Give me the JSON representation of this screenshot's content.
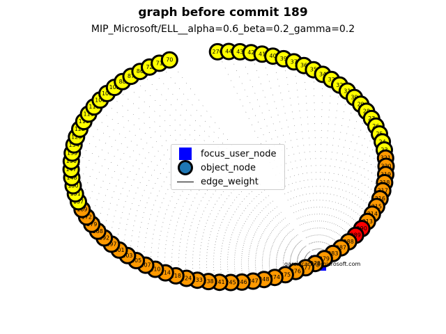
{
  "chart_data": {
    "type": "network",
    "title": "graph before commit 189",
    "subtitle": "MIP_Microsoft/ELL__alpha=0.6_beta=0.2_gamma=0.2",
    "legend": {
      "placement": "center",
      "entries": [
        {
          "label": "focus_user_node",
          "marker": "square",
          "color": "#0000ff"
        },
        {
          "label": "object_node",
          "marker": "circle",
          "color": "#1f77b4"
        },
        {
          "label": "edge_weight",
          "marker": "line",
          "color": "#000000"
        }
      ]
    },
    "focus_node": {
      "label": "garciacarlo@microsoft.com",
      "color": "#0000ff"
    },
    "node_ring": [
      {
        "label": "270",
        "color": "#ffff00"
      },
      {
        "label": "44",
        "color": "#ffff00"
      },
      {
        "label": "43",
        "color": "#ffff00"
      },
      {
        "label": "42",
        "color": "#ffff00"
      },
      {
        "label": "41",
        "color": "#ffff00"
      },
      {
        "label": "40",
        "color": "#ffff00"
      },
      {
        "label": "39",
        "color": "#ffff00"
      },
      {
        "label": "37",
        "color": "#ffff00"
      },
      {
        "label": "36",
        "color": "#ffff00"
      },
      {
        "label": "35",
        "color": "#ffff00"
      },
      {
        "label": "34",
        "color": "#ffff00"
      },
      {
        "label": "33",
        "color": "#ffff00"
      },
      {
        "label": "32",
        "color": "#ffff00"
      },
      {
        "label": "31",
        "color": "#ffff00"
      },
      {
        "label": "30",
        "color": "#ffff00"
      },
      {
        "label": "29",
        "color": "#ffff00"
      },
      {
        "label": "28",
        "color": "#ffff00"
      },
      {
        "label": "27",
        "color": "#ffff00"
      },
      {
        "label": "26",
        "color": "#ffff00"
      },
      {
        "label": "25",
        "color": "#ffff00"
      },
      {
        "label": "24",
        "color": "#ffff00"
      },
      {
        "label": "23",
        "color": "#ffff00"
      },
      {
        "label": "321",
        "color": "#ff9900"
      },
      {
        "label": "320",
        "color": "#ff9900"
      },
      {
        "label": "319",
        "color": "#ff9900"
      },
      {
        "label": "318",
        "color": "#ff9900"
      },
      {
        "label": "317",
        "color": "#ff9900"
      },
      {
        "label": "316",
        "color": "#ff9900"
      },
      {
        "label": "315",
        "color": "#ff9900"
      },
      {
        "label": "314",
        "color": "#ff9900"
      },
      {
        "label": "313",
        "color": "#ff9900"
      },
      {
        "label": "290",
        "color": "#ff0000"
      },
      {
        "label": "289",
        "color": "#ff0000"
      },
      {
        "label": "288",
        "color": "#ff9900"
      },
      {
        "label": "287",
        "color": "#ff9900"
      },
      {
        "label": "283",
        "color": "#ff9900"
      },
      {
        "label": "279",
        "color": "#ff9900"
      },
      {
        "label": "278",
        "color": "#ff9900"
      },
      {
        "label": "277",
        "color": "#ff9900"
      },
      {
        "label": "276",
        "color": "#ff9900"
      },
      {
        "label": "275",
        "color": "#ff9900"
      },
      {
        "label": "274",
        "color": "#ff9900"
      },
      {
        "label": "248",
        "color": "#ff9900"
      },
      {
        "label": "247",
        "color": "#ff9900"
      },
      {
        "label": "246",
        "color": "#ff9900"
      },
      {
        "label": "245",
        "color": "#ff9900"
      },
      {
        "label": "241",
        "color": "#ff9900"
      },
      {
        "label": "238",
        "color": "#ff9900"
      },
      {
        "label": "233",
        "color": "#ff9900"
      },
      {
        "label": "224",
        "color": "#ff9900"
      },
      {
        "label": "218",
        "color": "#ff9900"
      },
      {
        "label": "214",
        "color": "#ff9900"
      },
      {
        "label": "210",
        "color": "#ff9900"
      },
      {
        "label": "207",
        "color": "#ff9900"
      },
      {
        "label": "205",
        "color": "#ff9900"
      },
      {
        "label": "203",
        "color": "#ff9900"
      },
      {
        "label": "201",
        "color": "#ff9900"
      },
      {
        "label": "197",
        "color": "#ff9900"
      },
      {
        "label": "192",
        "color": "#ff9900"
      },
      {
        "label": "188",
        "color": "#ff9900"
      },
      {
        "label": "179",
        "color": "#ff9900"
      },
      {
        "label": "172",
        "color": "#ff9900"
      },
      {
        "label": "169",
        "color": "#ff9900"
      },
      {
        "label": "157",
        "color": "#ffff00"
      },
      {
        "label": "151",
        "color": "#ffff00"
      },
      {
        "label": "150",
        "color": "#ffff00"
      },
      {
        "label": "148",
        "color": "#ffff00"
      },
      {
        "label": "147",
        "color": "#ffff00"
      },
      {
        "label": "136",
        "color": "#ffff00"
      },
      {
        "label": "135",
        "color": "#ffff00"
      },
      {
        "label": "134",
        "color": "#ffff00"
      },
      {
        "label": "123",
        "color": "#ffff00"
      },
      {
        "label": "122",
        "color": "#ffff00"
      },
      {
        "label": "116",
        "color": "#ffff00"
      },
      {
        "label": "111",
        "color": "#ffff00"
      },
      {
        "label": "110",
        "color": "#ffff00"
      },
      {
        "label": "109",
        "color": "#ffff00"
      },
      {
        "label": "103",
        "color": "#ffff00"
      },
      {
        "label": "102",
        "color": "#ffff00"
      },
      {
        "label": "88",
        "color": "#ffff00"
      },
      {
        "label": "87",
        "color": "#ffff00"
      },
      {
        "label": "86",
        "color": "#ffff00"
      },
      {
        "label": "72",
        "color": "#ffff00"
      },
      {
        "label": "71",
        "color": "#ffff00"
      },
      {
        "label": "70",
        "color": "#ffff00"
      }
    ]
  }
}
